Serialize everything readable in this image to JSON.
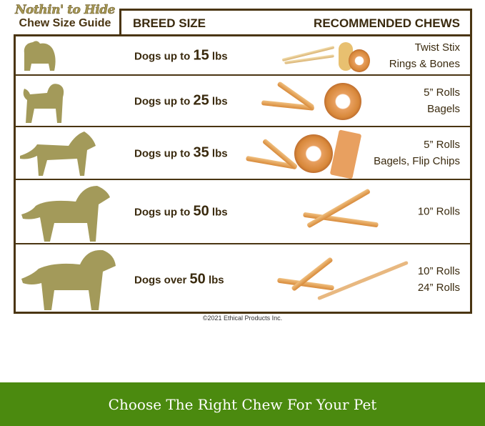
{
  "logo": {
    "brand": "Nothin' to Hide",
    "subtitle": "Chew Size Guide"
  },
  "header": {
    "breed_size": "BREED SIZE",
    "recommended_chews": "RECOMMENDED CHEWS"
  },
  "rows": [
    {
      "prefix": "Dogs up to ",
      "weight": "15",
      "unit": " lbs",
      "chews": [
        "Twist Stix",
        "Rings & Bones"
      ]
    },
    {
      "prefix": "Dogs up to ",
      "weight": "25",
      "unit": " lbs",
      "chews": [
        "5” Rolls",
        "Bagels"
      ]
    },
    {
      "prefix": "Dogs up to ",
      "weight": "35",
      "unit": " lbs",
      "chews": [
        "5” Rolls",
        "Bagels, Flip Chips"
      ]
    },
    {
      "prefix": "Dogs up to ",
      "weight": "50",
      "unit": " lbs",
      "chews": [
        "10” Rolls"
      ]
    },
    {
      "prefix": "Dogs over ",
      "weight": "50",
      "unit": " lbs",
      "chews": [
        "10” Rolls",
        "24” Rolls"
      ]
    }
  ],
  "copyright": "©2021 Ethical Products Inc.",
  "banner": "Choose The Right Chew For Your Pet",
  "colors": {
    "brown": "#4a3512",
    "dog": "#a39a5a",
    "banner": "#4b8a0f"
  }
}
